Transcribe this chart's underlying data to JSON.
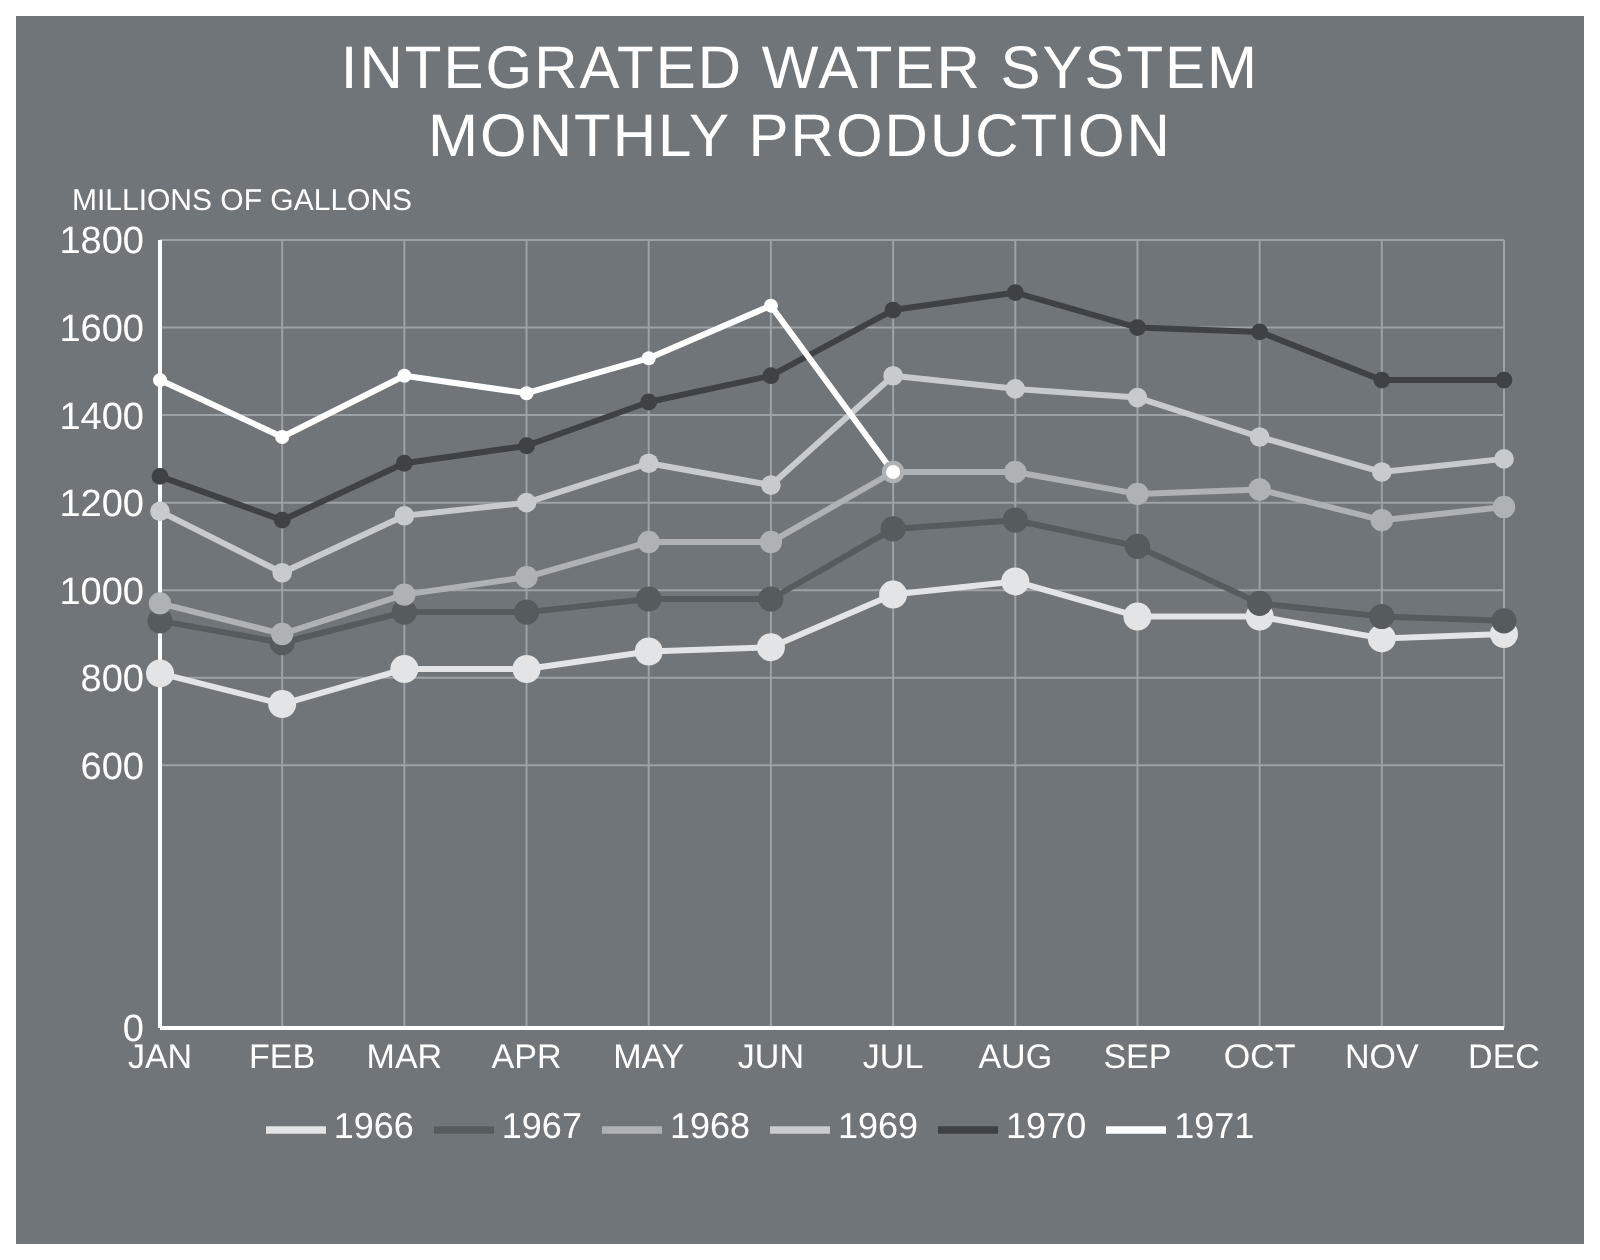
{
  "chart_data": {
    "type": "line",
    "title": "INTEGRATED WATER SYSTEM",
    "subtitle": "MONTHLY PRODUCTION",
    "ylabel": "MILLIONS OF GALLONS",
    "categories": [
      "JAN",
      "FEB",
      "MAR",
      "APR",
      "MAY",
      "JUN",
      "JUL",
      "AUG",
      "SEP",
      "OCT",
      "NOV",
      "DEC"
    ],
    "series": [
      {
        "name": "1966",
        "color": "#e2e4e5",
        "values": [
          810,
          740,
          820,
          820,
          860,
          870,
          990,
          1020,
          940,
          940,
          890,
          900
        ]
      },
      {
        "name": "1967",
        "color": "#565b5e",
        "values": [
          930,
          880,
          950,
          950,
          980,
          980,
          1140,
          1160,
          1100,
          970,
          940,
          930
        ]
      },
      {
        "name": "1968",
        "color": "#aeb2b4",
        "values": [
          970,
          900,
          990,
          1030,
          1110,
          1110,
          1270,
          1270,
          1220,
          1230,
          1160,
          1190
        ]
      },
      {
        "name": "1969",
        "color": "#c8cbcd",
        "values": [
          1180,
          1040,
          1170,
          1200,
          1290,
          1240,
          1490,
          1460,
          1440,
          1350,
          1270,
          1300
        ]
      },
      {
        "name": "1970",
        "color": "#3e4245",
        "values": [
          1260,
          1160,
          1290,
          1330,
          1430,
          1490,
          1640,
          1680,
          1600,
          1590,
          1480,
          1480
        ]
      },
      {
        "name": "1971",
        "color": "#ffffff",
        "values": [
          1480,
          1350,
          1490,
          1450,
          1530,
          1650,
          1270,
          null,
          null,
          null,
          null,
          null
        ]
      }
    ],
    "ylim": [
      0,
      1800
    ],
    "yticks": [
      0,
      600,
      800,
      1000,
      1200,
      1400,
      1600,
      1800
    ],
    "grid": true,
    "legend": "bottom",
    "marker": "circle",
    "line_style": "solid"
  }
}
